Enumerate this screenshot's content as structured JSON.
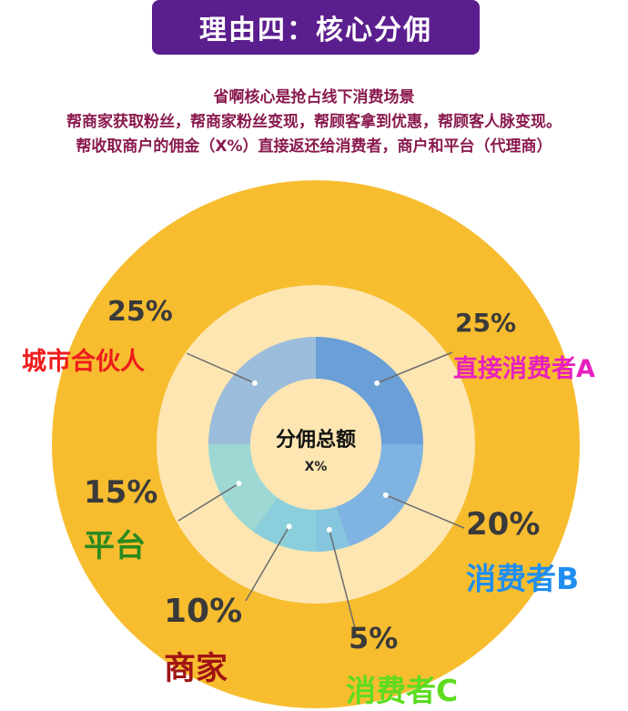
{
  "title": "理由四：核心分佣",
  "subtitle_lines": [
    "省啊核心是抢占线下消费场景",
    "帮商家获取粉丝，帮商家粉丝变现，帮顾客拿到优惠，帮顾客人脉变现。",
    "帮收取商户的佣金（X%）直接返还给消费者，商户和平台（代理商）"
  ],
  "center": {
    "title": "分佣总额",
    "value": "X%"
  },
  "chart_data": {
    "type": "pie",
    "slices": [
      {
        "label": "直接消费者A",
        "percent_label": "25%",
        "value": 25,
        "color": "#6a9fd8",
        "label_color": "#e81fc0"
      },
      {
        "label": "消费者B",
        "percent_label": "20%",
        "value": 20,
        "color": "#7fb4e2",
        "label_color": "#1f8ef0"
      },
      {
        "label": "消费者C",
        "percent_label": "5%",
        "value": 5,
        "color": "#85c6de",
        "label_color": "#5ddc20"
      },
      {
        "label": "商家",
        "percent_label": "10%",
        "value": 10,
        "color": "#8ccfdc",
        "label_color": "#a01414"
      },
      {
        "label": "平台",
        "percent_label": "15%",
        "value": 15,
        "color": "#9ed8d4",
        "label_color": "#2a8a1e"
      },
      {
        "label": "城市合伙人",
        "percent_label": "25%",
        "value": 25,
        "color": "#9cbcdc",
        "label_color": "#ee1c1c"
      }
    ]
  },
  "colors": {
    "banner": "#5b1e8e",
    "outer_ring": "#f7bd2f",
    "middle_ring": "#fde6b2",
    "center_disc": "#fde6b2",
    "leader_line": "#6b6b6b"
  }
}
